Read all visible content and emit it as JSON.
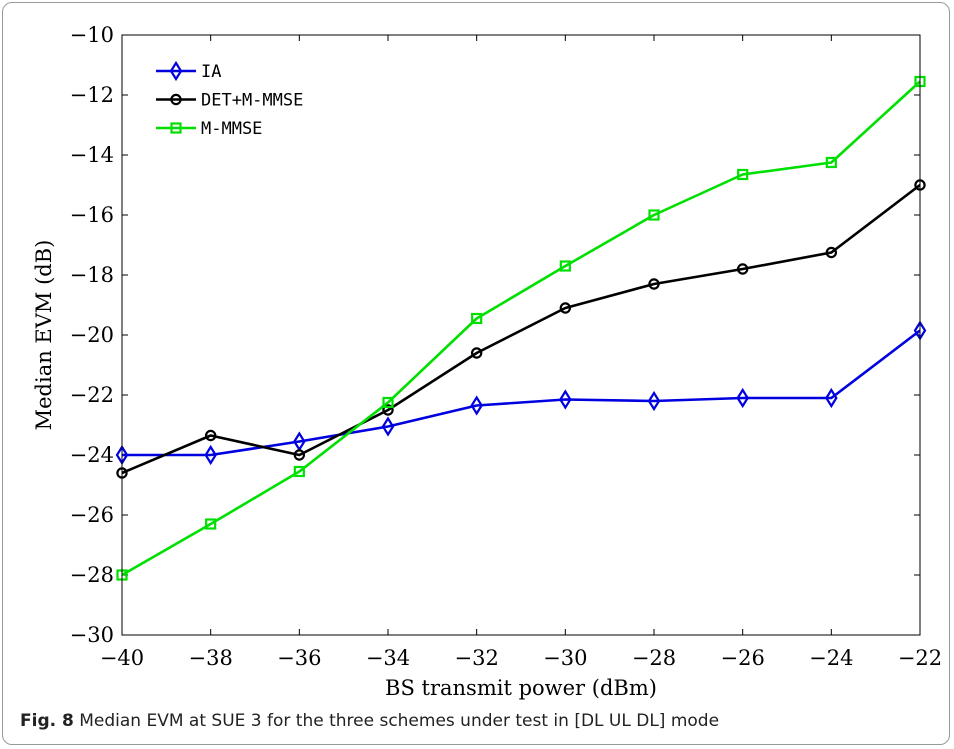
{
  "caption": {
    "label": "Fig. 8",
    "text": "Median EVM at SUE 3 for the three schemes under test in [DL UL DL] mode"
  },
  "chart_data": {
    "type": "line",
    "xlabel": "BS transmit power (dBm)",
    "ylabel": "Median EVM (dB)",
    "xlim": [
      -40,
      -22
    ],
    "ylim": [
      -30,
      -10
    ],
    "xticks": [
      -40,
      -38,
      -36,
      -34,
      -32,
      -30,
      -28,
      -26,
      -24,
      -22
    ],
    "yticks": [
      -30,
      -28,
      -26,
      -24,
      -22,
      -20,
      -18,
      -16,
      -14,
      -12,
      -10
    ],
    "legend_position": "top-left",
    "grid": false,
    "x": [
      -40,
      -38,
      -36,
      -34,
      -32,
      -30,
      -28,
      -26,
      -24,
      -22
    ],
    "series": [
      {
        "name": "IA",
        "color": "#0000e0",
        "marker": "diamond",
        "values": [
          -24.0,
          -24.0,
          -23.55,
          -23.05,
          -22.35,
          -22.15,
          -22.2,
          -22.1,
          -22.1,
          -19.85
        ]
      },
      {
        "name": "DET+M-MMSE",
        "color": "#000000",
        "marker": "circle",
        "values": [
          -24.6,
          -23.35,
          -24.0,
          -22.5,
          -20.6,
          -19.1,
          -18.3,
          -17.8,
          -17.25,
          -15.0
        ]
      },
      {
        "name": "M-MMSE",
        "color": "#00e000",
        "marker": "square",
        "values": [
          -28.0,
          -26.3,
          -24.55,
          -22.25,
          -19.45,
          -17.7,
          -16.0,
          -14.65,
          -14.25,
          -11.55
        ]
      }
    ]
  }
}
